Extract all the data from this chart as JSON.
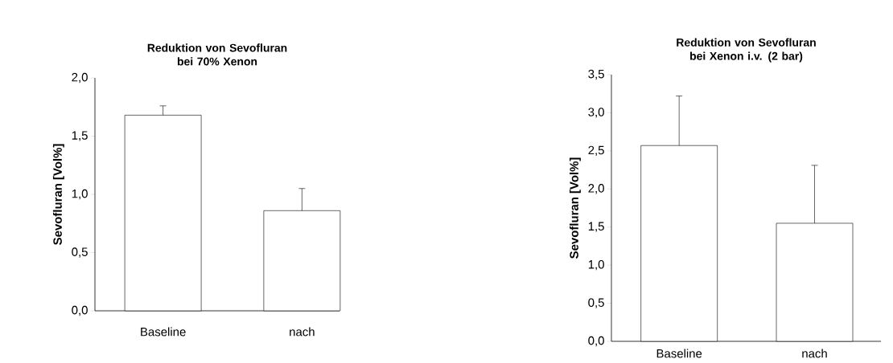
{
  "chart_data": [
    {
      "type": "bar",
      "title": "Reduktion von Sevofluran bei 70% Xenon",
      "ylabel": "Sevofluran [Vol%]",
      "categories": [
        "Baseline",
        "nach"
      ],
      "values": [
        1.68,
        0.86
      ],
      "errors": [
        [
          1.68,
          1.76
        ],
        [
          0.86,
          1.05
        ]
      ],
      "color": "#ffffff",
      "ylim": [
        0,
        2.0
      ],
      "yticks": [
        {
          "value": 0,
          "label": "0,0"
        },
        {
          "value": 0.5,
          "label": "0,5"
        },
        {
          "value": 1.0,
          "label": "1,0"
        },
        {
          "value": 1.5,
          "label": "1,5"
        },
        {
          "value": 2.0,
          "label": "2,0"
        }
      ],
      "grid": false
    },
    {
      "type": "bar",
      "title": "Reduktion von Sevofluran bei  Xenon i.v. (2 bar)",
      "ylabel": "Sevofluran [Vol%]",
      "categories": [
        "Baseline",
        "nach"
      ],
      "values": [
        2.57,
        1.55
      ],
      "errors": [
        [
          2.57,
          3.22
        ],
        [
          1.55,
          2.31
        ]
      ],
      "color": "#ffffff",
      "ylim": [
        0,
        3.5
      ],
      "yticks": [
        {
          "value": 0,
          "label": "0,0"
        },
        {
          "value": 0.5,
          "label": "0,5"
        },
        {
          "value": 1.0,
          "label": "1,0"
        },
        {
          "value": 1.5,
          "label": "1,5"
        },
        {
          "value": 2.0,
          "label": "2,0"
        },
        {
          "value": 2.5,
          "label": "2,5"
        },
        {
          "value": 3.0,
          "label": "3,0"
        },
        {
          "value": 3.5,
          "label": "3,5"
        }
      ],
      "grid": false
    }
  ]
}
